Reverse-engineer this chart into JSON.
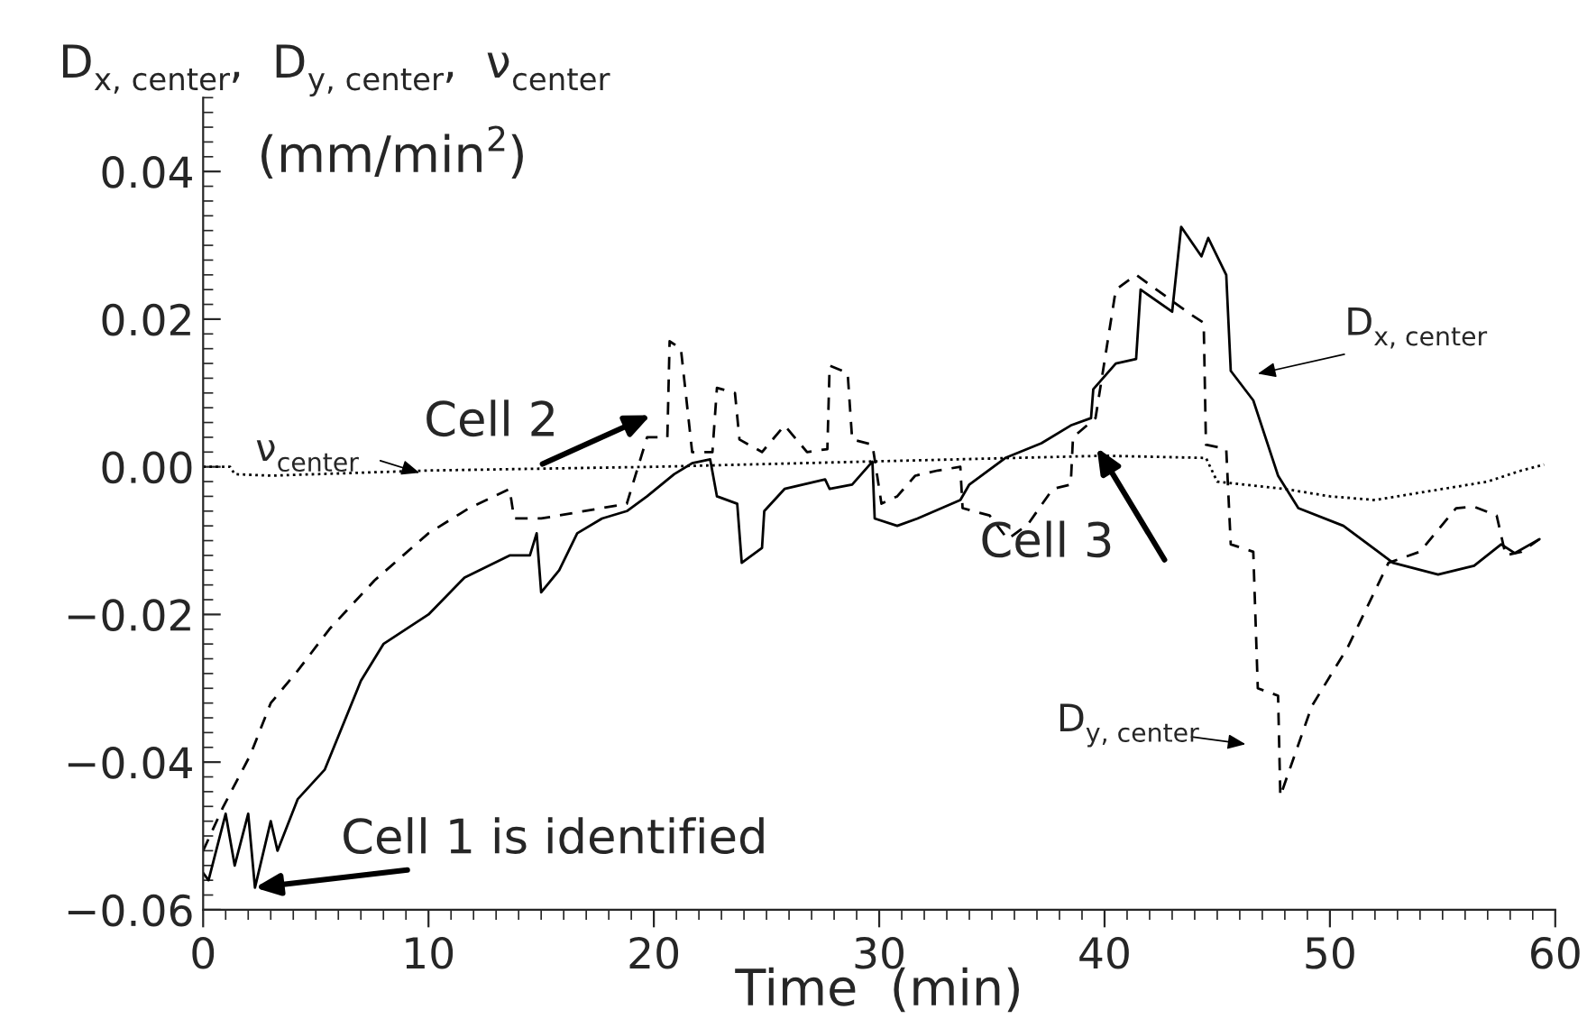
{
  "chart_data": {
    "type": "line",
    "ylabel": "D$_{x, center}$,  D$_{y, center}$,  ν$_{center}$",
    "xlabel": "Time  (min)",
    "xlim": [
      0,
      60
    ],
    "xticks": [
      0,
      10,
      20,
      30,
      40,
      50,
      60
    ],
    "ylim": [
      -0.06,
      0.05
    ],
    "yticks": [
      {
        "value": -0.06,
        "label": "−0.06"
      },
      {
        "value": -0.04,
        "label": "−0.04"
      },
      {
        "value": -0.02,
        "label": "−0.02"
      },
      {
        "value": 0,
        "label": "0.00"
      },
      {
        "value": 0.02,
        "label": "0.02"
      },
      {
        "value": 0.04,
        "label": "0.04"
      }
    ],
    "grid": false,
    "legend": false,
    "series": [
      {
        "color": "#000000",
        "line_style": "solid",
        "x": [
          0,
          0.24,
          1.0,
          1.4,
          2.0,
          2.3,
          3.0,
          3.3,
          4.2,
          5.4,
          7.0,
          8.0,
          10,
          11.6,
          13.6,
          14.5,
          14.8,
          15,
          15.8,
          16.6,
          17.7,
          18.8,
          19.7,
          20.9,
          21.7,
          22.5,
          22.8,
          23.7,
          23.9,
          24.8,
          24.9,
          25.8,
          27.6,
          27.8,
          28.8,
          29.7,
          29.8,
          30.8,
          31.7,
          33.6,
          34,
          35.6,
          37.2,
          38.5,
          39.4,
          39.5,
          40.5,
          41.4,
          41.6,
          43,
          43.4,
          44.3,
          44.6,
          45.4,
          45.6,
          46.6,
          47.7,
          48.6,
          50.6,
          52.8,
          54.8,
          56.4,
          57.6,
          58.2,
          59.3
        ],
        "values": [
          -0.055,
          -0.056,
          -0.047,
          -0.054,
          -0.047,
          -0.057,
          -0.048,
          -0.052,
          -0.045,
          -0.041,
          -0.029,
          -0.024,
          -0.02,
          -0.015,
          -0.012,
          -0.012,
          -0.009,
          -0.017,
          -0.014,
          -0.009,
          -0.007,
          -0.006,
          -0.004,
          -0.001,
          0.0005,
          0.001,
          -0.004,
          -0.005,
          -0.013,
          -0.011,
          -0.006,
          -0.003,
          -0.0017,
          -0.003,
          -0.0024,
          0.0007,
          -0.007,
          -0.008,
          -0.007,
          -0.0045,
          -0.0024,
          0.0012,
          0.0032,
          0.0056,
          0.0066,
          0.0105,
          0.014,
          0.0146,
          0.024,
          0.021,
          0.0325,
          0.0285,
          0.031,
          0.026,
          0.013,
          0.009,
          -0.0012,
          -0.0056,
          -0.008,
          -0.013,
          -0.0146,
          -0.0134,
          -0.0105,
          -0.0117,
          -0.0098
        ]
      },
      {
        "color": "#000000",
        "line_style": "dashed",
        "x": [
          0,
          0.9,
          2.1,
          3,
          4.2,
          5.6,
          7.6,
          10,
          11.8,
          13.6,
          13.8,
          15,
          18.8,
          19.7,
          20.6,
          20.7,
          21.2,
          21.7,
          22.6,
          22.8,
          23.6,
          23.8,
          24.8,
          25.8,
          26.8,
          27.7,
          27.8,
          28.6,
          28.8,
          29.7,
          30.1,
          30.8,
          31.6,
          32.6,
          33.6,
          33.7,
          34.9,
          35.7,
          36.6,
          37.7,
          38.5,
          38.6,
          39.6,
          40.5,
          41.4,
          43.8,
          44.4,
          44.5,
          45.4,
          45.6,
          46.6,
          46.8,
          47.7,
          47.8,
          49.2,
          50.8,
          52.6,
          54,
          55.6,
          56.4,
          57.4,
          57.8,
          58.5,
          59.3
        ],
        "values": [
          -0.052,
          -0.046,
          -0.039,
          -0.032,
          -0.0276,
          -0.022,
          -0.0154,
          -0.009,
          -0.0056,
          -0.003,
          -0.007,
          -0.007,
          -0.005,
          0.004,
          0.004,
          0.017,
          0.016,
          0.002,
          0.002,
          0.0107,
          0.01,
          0.0037,
          0.002,
          0.0056,
          0.002,
          0.0024,
          0.0137,
          0.0127,
          0.0037,
          0.003,
          -0.005,
          -0.004,
          -0.0012,
          -0.0005,
          0,
          -0.0056,
          -0.0066,
          -0.0098,
          -0.0078,
          -0.003,
          -0.0024,
          0.004,
          0.0066,
          0.024,
          0.026,
          0.0207,
          0.0195,
          0.003,
          0.0024,
          -0.0105,
          -0.0115,
          -0.03,
          -0.031,
          -0.0446,
          -0.0324,
          -0.0244,
          -0.013,
          -0.0115,
          -0.0056,
          -0.0054,
          -0.0066,
          -0.012,
          -0.0115,
          -0.0098
        ]
      },
      {
        "color": "#000000",
        "line_style": "dotted",
        "x": [
          0,
          1.2,
          1.4,
          3,
          10,
          20,
          40,
          44.5,
          45,
          48,
          50,
          52,
          55,
          57,
          58.5,
          59.5
        ],
        "values": [
          0,
          0,
          -0.001,
          -0.0012,
          -0.0005,
          0,
          0.0015,
          0.0012,
          -0.002,
          -0.003,
          -0.004,
          -0.0045,
          -0.003,
          -0.002,
          -0.0005,
          0.0003
        ]
      }
    ],
    "annotations": [
      "(mm/min$^{2}$)",
      "Cell 2",
      "Cell 3",
      {
        "text": "Cell 1 is identified",
        "x": 2.3,
        "y": -0.057
      },
      "ν$_{center}$",
      "D$_{x, center}$",
      "D$_{y, center}$"
    ]
  }
}
